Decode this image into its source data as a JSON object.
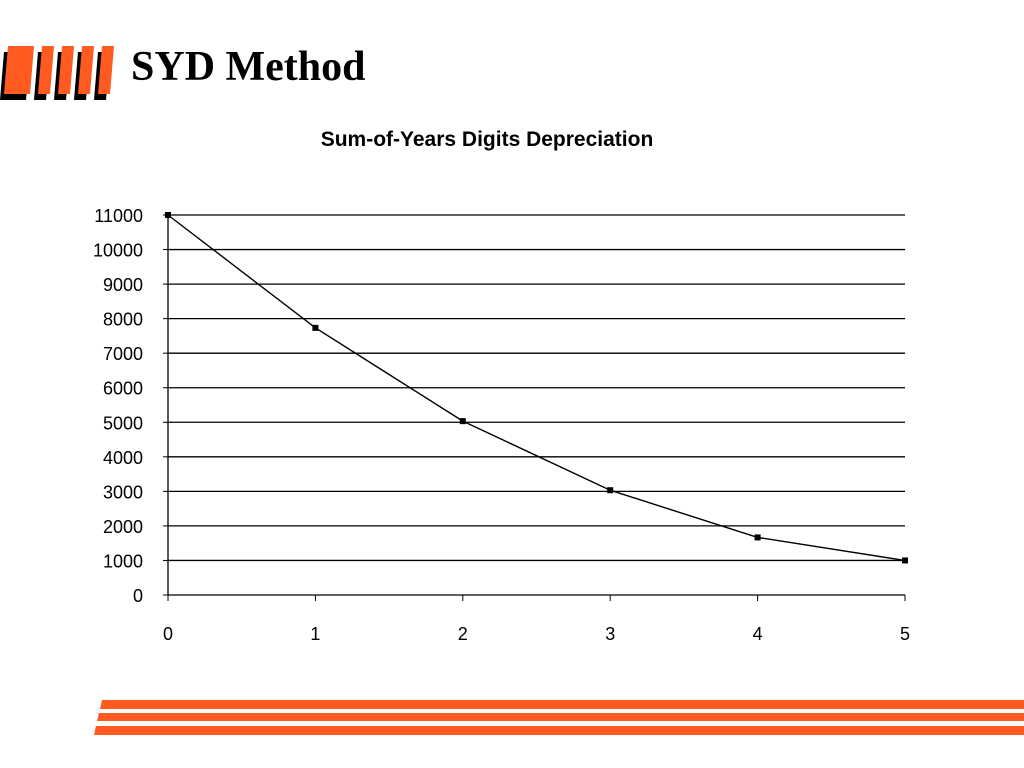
{
  "slide": {
    "title": "SYD Method"
  },
  "colors": {
    "accent": "#FF5A1F",
    "accent_shadow": "#000000",
    "line": "#000000",
    "background": "#FFFFFF"
  },
  "chart_data": {
    "type": "line",
    "title": "Sum-of-Years Digits Depreciation",
    "xlabel": "",
    "ylabel": "",
    "x": [
      0,
      1,
      2,
      3,
      4,
      5
    ],
    "series": [
      {
        "values": [
          11000,
          7733,
          5033,
          3033,
          1667,
          1000
        ]
      }
    ],
    "xlim": [
      0,
      5
    ],
    "ylim": [
      0,
      11000
    ],
    "x_ticks": [
      0,
      1,
      2,
      3,
      4,
      5
    ],
    "y_ticks": [
      0,
      1000,
      2000,
      3000,
      4000,
      5000,
      6000,
      7000,
      8000,
      9000,
      10000,
      11000
    ],
    "grid": "horizontal",
    "legend": "none",
    "marker": "square"
  }
}
